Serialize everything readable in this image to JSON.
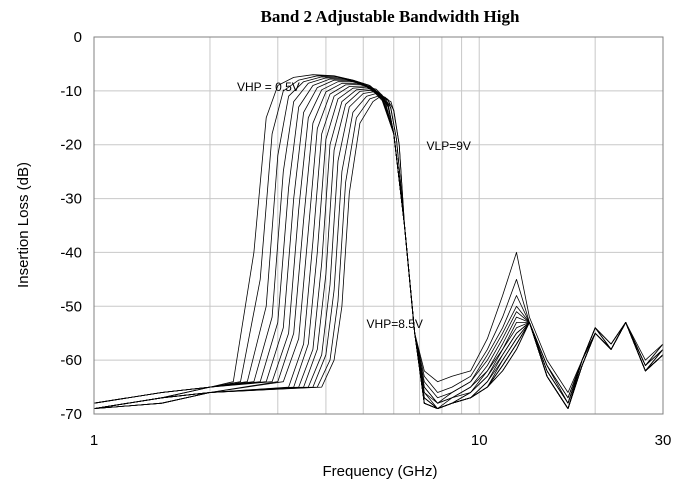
{
  "chart_data": {
    "type": "line",
    "title": "Band 2 Adjustable Bandwidth High",
    "xlabel": "Frequency (GHz)",
    "ylabel": "Insertion Loss (dB)",
    "x_scale": "log",
    "xlim": [
      1,
      30
    ],
    "ylim": [
      -70,
      0
    ],
    "x_ticks": [
      1,
      10,
      30
    ],
    "y_ticks": [
      0,
      -10,
      -20,
      -30,
      -40,
      -50,
      -60,
      -70
    ],
    "grid": true,
    "legend": "none",
    "annotations": [
      {
        "text": "VHP = 0.5V",
        "x": 2.35,
        "y": -10
      },
      {
        "text": "VLP=9V",
        "x": 7.3,
        "y": -21
      },
      {
        "text": "VHP=8.5V",
        "x": 5.1,
        "y": -54
      }
    ],
    "series_note": "family of 17 traces, VHP stepped 0.5V to 8.5V",
    "series": [
      {
        "x": [
          1,
          1.5,
          2,
          2.3,
          2.6,
          2.8,
          3.0,
          3.3,
          3.7,
          4.2,
          4.7,
          5.2,
          5.6,
          6.0,
          6.4,
          6.8,
          7.2,
          7.8,
          8.5,
          9.5,
          10.5,
          11.5,
          12.5,
          13.5,
          15,
          17,
          18.5,
          20,
          22,
          24,
          27,
          30
        ],
        "y": [
          -68,
          -66,
          -65,
          -64,
          -40,
          -15,
          -9,
          -7.5,
          -7,
          -7.2,
          -8,
          -9,
          -11,
          -18,
          -35,
          -55,
          -62,
          -64,
          -63,
          -62,
          -56,
          -48,
          -40,
          -52,
          -60,
          -66,
          -60,
          -54,
          -57,
          -53,
          -60,
          -57
        ]
      },
      {
        "x": [
          1,
          1.5,
          2,
          2.4,
          2.7,
          2.9,
          3.1,
          3.4,
          3.8,
          4.2,
          4.7,
          5.2,
          5.6,
          6.0,
          6.4,
          6.8,
          7.2,
          7.8,
          8.5,
          9.5,
          10.5,
          11.5,
          12.5,
          13.5,
          15,
          17,
          18.5,
          20,
          22,
          24,
          27,
          30
        ],
        "y": [
          -68,
          -66,
          -65,
          -64,
          -45,
          -18,
          -10,
          -8,
          -7.2,
          -7.3,
          -8,
          -9,
          -11,
          -18,
          -35,
          -55,
          -63,
          -66,
          -65,
          -63,
          -58,
          -52,
          -45,
          -53,
          -61,
          -67,
          -60,
          -54,
          -57,
          -53,
          -61,
          -57
        ]
      },
      {
        "x": [
          1,
          1.5,
          2,
          2.5,
          2.8,
          3.0,
          3.2,
          3.5,
          3.9,
          4.3,
          4.7,
          5.2,
          5.6,
          6.0,
          6.4,
          6.8,
          7.2,
          7.8,
          8.5,
          9.5,
          10.5,
          11.5,
          12.5,
          13.5,
          15,
          17,
          18.5,
          20,
          22,
          24,
          27,
          30
        ],
        "y": [
          -68,
          -66,
          -65,
          -64,
          -50,
          -22,
          -11,
          -8.3,
          -7.4,
          -7.5,
          -8.1,
          -9.2,
          -11,
          -18,
          -35,
          -55,
          -64,
          -67,
          -66,
          -64,
          -59,
          -54,
          -48,
          -53,
          -61,
          -67,
          -60,
          -54,
          -57,
          -53,
          -61,
          -57
        ]
      },
      {
        "x": [
          1,
          1.5,
          2,
          2.6,
          2.9,
          3.1,
          3.3,
          3.6,
          4.0,
          4.4,
          4.8,
          5.2,
          5.6,
          6.0,
          6.4,
          6.8,
          7.2,
          7.8,
          8.5,
          9.5,
          10.5,
          11.5,
          12.5,
          13.5,
          15,
          17,
          18.5,
          20,
          22,
          24,
          27,
          30
        ],
        "y": [
          -68,
          -66,
          -65,
          -64,
          -52,
          -25,
          -12,
          -8.6,
          -7.6,
          -7.7,
          -8.3,
          -9.4,
          -11.2,
          -18,
          -35,
          -55,
          -65,
          -68,
          -66,
          -64,
          -60,
          -55,
          -50,
          -53,
          -61,
          -68,
          -60,
          -54,
          -58,
          -53,
          -61,
          -58
        ]
      },
      {
        "x": [
          1,
          1.5,
          2,
          2.7,
          3.0,
          3.2,
          3.4,
          3.7,
          4.1,
          4.5,
          4.9,
          5.3,
          5.6,
          6.0,
          6.4,
          6.8,
          7.2,
          7.8,
          8.5,
          9.5,
          10.5,
          11.5,
          12.5,
          13.5,
          15,
          17,
          18.5,
          20,
          22,
          24,
          27,
          30
        ],
        "y": [
          -68,
          -66,
          -65,
          -64,
          -53,
          -28,
          -13,
          -9,
          -7.8,
          -7.9,
          -8.5,
          -9.6,
          -11.4,
          -18,
          -35,
          -55,
          -65,
          -68,
          -67,
          -65,
          -61,
          -56,
          -51,
          -53,
          -62,
          -68,
          -60,
          -54,
          -58,
          -53,
          -61,
          -58
        ]
      },
      {
        "x": [
          1,
          1.5,
          2,
          2.8,
          3.1,
          3.3,
          3.5,
          3.8,
          4.2,
          4.6,
          5.0,
          5.3,
          5.6,
          6.0,
          6.4,
          6.8,
          7.2,
          7.8,
          8.5,
          9.5,
          10.5,
          11.5,
          12.5,
          13.5,
          15,
          17,
          18.5,
          20,
          22,
          24,
          27,
          30
        ],
        "y": [
          -69,
          -67,
          -65,
          -64,
          -54,
          -30,
          -14,
          -9.4,
          -8,
          -8.1,
          -8.7,
          -9.8,
          -11.6,
          -18,
          -35,
          -55,
          -66,
          -68,
          -67,
          -65,
          -62,
          -57,
          -52,
          -53,
          -62,
          -68,
          -60,
          -54,
          -58,
          -53,
          -62,
          -58
        ]
      },
      {
        "x": [
          1,
          1.5,
          2,
          2.9,
          3.2,
          3.4,
          3.6,
          3.9,
          4.3,
          4.7,
          5.0,
          5.3,
          5.6,
          6.0,
          6.4,
          6.8,
          7.2,
          7.8,
          8.5,
          9.5,
          10.5,
          11.5,
          12.5,
          13.5,
          15,
          17,
          18.5,
          20,
          22,
          24,
          27,
          30
        ],
        "y": [
          -69,
          -67,
          -65,
          -64,
          -55,
          -32,
          -15,
          -9.8,
          -8.3,
          -8.3,
          -8.9,
          -10,
          -11.8,
          -18,
          -35,
          -55,
          -66,
          -69,
          -67,
          -66,
          -62,
          -58,
          -53,
          -53,
          -62,
          -68,
          -60,
          -55,
          -58,
          -53,
          -62,
          -58
        ]
      },
      {
        "x": [
          1,
          1.5,
          2,
          3.0,
          3.3,
          3.5,
          3.7,
          4.0,
          4.4,
          4.8,
          5.1,
          5.4,
          5.7,
          6.0,
          6.4,
          6.8,
          7.2,
          7.8,
          8.5,
          9.5,
          10.5,
          11.5,
          12.5,
          13.5,
          15,
          17,
          18.5,
          20,
          22,
          24,
          27,
          30
        ],
        "y": [
          -69,
          -67,
          -66,
          -64,
          -55,
          -34,
          -16,
          -10.2,
          -8.6,
          -8.6,
          -9.1,
          -10.2,
          -12,
          -18,
          -35,
          -55,
          -67,
          -69,
          -68,
          -66,
          -63,
          -58,
          -54,
          -53,
          -63,
          -69,
          -60,
          -55,
          -58,
          -53,
          -62,
          -58
        ]
      },
      {
        "x": [
          1,
          1.5,
          2,
          3.1,
          3.4,
          3.6,
          3.8,
          4.1,
          4.5,
          4.9,
          5.2,
          5.5,
          5.7,
          6.0,
          6.4,
          6.8,
          7.2,
          7.8,
          8.5,
          9.5,
          10.5,
          11.5,
          12.5,
          13.5,
          15,
          17,
          18.5,
          20,
          22,
          24,
          27,
          30
        ],
        "y": [
          -69,
          -67,
          -66,
          -64,
          -56,
          -36,
          -17,
          -10.6,
          -8.9,
          -8.8,
          -9.3,
          -10.4,
          -12.2,
          -18,
          -35,
          -55,
          -67,
          -69,
          -68,
          -66,
          -63,
          -59,
          -55,
          -53,
          -63,
          -69,
          -60,
          -55,
          -58,
          -53,
          -62,
          -59
        ]
      },
      {
        "x": [
          1,
          1.5,
          2,
          3.2,
          3.5,
          3.7,
          3.9,
          4.2,
          4.6,
          5.0,
          5.3,
          5.5,
          5.8,
          6.0,
          6.4,
          6.8,
          7.2,
          7.8,
          8.5,
          9.5,
          10.5,
          11.5,
          12.5,
          13.5,
          15,
          17,
          18.5,
          20,
          22,
          24,
          27,
          30
        ],
        "y": [
          -69,
          -67,
          -66,
          -65,
          -57,
          -38,
          -18,
          -11,
          -9.2,
          -9.1,
          -9.5,
          -10.6,
          -12.4,
          -18,
          -35,
          -55,
          -67,
          -69,
          -68,
          -67,
          -64,
          -59,
          -55,
          -53,
          -63,
          -69,
          -61,
          -55,
          -58,
          -53,
          -62,
          -59
        ]
      },
      {
        "x": [
          1,
          1.5,
          2,
          3.3,
          3.6,
          3.8,
          4.0,
          4.3,
          4.7,
          5.1,
          5.4,
          5.6,
          5.8,
          6.0,
          6.4,
          6.8,
          7.2,
          7.8,
          8.5,
          9.5,
          10.5,
          11.5,
          12.5,
          13.5,
          15,
          17,
          18.5,
          20,
          22,
          24,
          27,
          30
        ],
        "y": [
          -69,
          -67,
          -66,
          -65,
          -57,
          -40,
          -19,
          -11.5,
          -9.5,
          -9.3,
          -9.7,
          -10.8,
          -12.6,
          -18,
          -35,
          -55,
          -68,
          -69,
          -68,
          -67,
          -64,
          -60,
          -56,
          -53,
          -63,
          -69,
          -61,
          -55,
          -58,
          -53,
          -62,
          -59
        ]
      },
      {
        "x": [
          1,
          1.5,
          2,
          3.4,
          3.7,
          3.9,
          4.1,
          4.4,
          4.8,
          5.2,
          5.4,
          5.6,
          5.8,
          6.0,
          6.4,
          6.8,
          7.2,
          7.8,
          8.5,
          9.5,
          10.5,
          11.5,
          12.5,
          13.5,
          15,
          17,
          18.5,
          20,
          22,
          24,
          27,
          30
        ],
        "y": [
          -69,
          -67,
          -66,
          -65,
          -58,
          -42,
          -20,
          -12,
          -9.8,
          -9.6,
          -10,
          -11,
          -12.8,
          -18,
          -35,
          -55,
          -68,
          -69,
          -68,
          -67,
          -65,
          -60,
          -56,
          -53,
          -63,
          -69,
          -61,
          -55,
          -58,
          -53,
          -62,
          -59
        ]
      },
      {
        "x": [
          1,
          1.5,
          2,
          3.5,
          3.8,
          4.0,
          4.2,
          4.5,
          4.9,
          5.2,
          5.4,
          5.6,
          5.8,
          6.0,
          6.4,
          6.8,
          7.2,
          7.8,
          8.5,
          9.5,
          10.5,
          11.5,
          12.5,
          13.5,
          15,
          17,
          18.5,
          20,
          22,
          24,
          27,
          30
        ],
        "y": [
          -69,
          -67,
          -66,
          -65,
          -58,
          -44,
          -21,
          -12.5,
          -10.1,
          -9.9,
          -10.3,
          -11.2,
          -13,
          -18,
          -35,
          -55,
          -68,
          -69,
          -68,
          -67,
          -65,
          -61,
          -57,
          -53,
          -63,
          -69,
          -61,
          -55,
          -58,
          -53,
          -62,
          -59
        ]
      },
      {
        "x": [
          1,
          1.5,
          2,
          3.6,
          3.9,
          4.1,
          4.3,
          4.6,
          5.0,
          5.3,
          5.5,
          5.7,
          5.9,
          6.1,
          6.4,
          6.8,
          7.2,
          7.8,
          8.5,
          9.5,
          10.5,
          11.5,
          12.5,
          13.5,
          15,
          17,
          18.5,
          20,
          22,
          24,
          27,
          30
        ],
        "y": [
          -69,
          -68,
          -66,
          -65,
          -59,
          -46,
          -23,
          -13,
          -10.5,
          -10.2,
          -10.6,
          -11.4,
          -13.2,
          -19,
          -35,
          -55,
          -68,
          -69,
          -68,
          -67,
          -65,
          -61,
          -57,
          -53,
          -63,
          -69,
          -61,
          -55,
          -58,
          -53,
          -62,
          -59
        ]
      },
      {
        "x": [
          1,
          1.5,
          2,
          3.7,
          4.0,
          4.2,
          4.4,
          4.7,
          5.1,
          5.4,
          5.6,
          5.8,
          5.9,
          6.1,
          6.4,
          6.8,
          7.2,
          7.8,
          8.5,
          9.5,
          10.5,
          11.5,
          12.5,
          13.5,
          15,
          17,
          18.5,
          20,
          22,
          24,
          27,
          30
        ],
        "y": [
          -69,
          -68,
          -66,
          -65,
          -59,
          -47,
          -25,
          -14,
          -11,
          -10.5,
          -10.9,
          -11.6,
          -13.4,
          -19,
          -35,
          -55,
          -68,
          -69,
          -68,
          -67,
          -65,
          -61,
          -57,
          -53,
          -63,
          -69,
          -61,
          -55,
          -58,
          -53,
          -62,
          -59
        ]
      },
      {
        "x": [
          1,
          1.5,
          2,
          3.8,
          4.1,
          4.3,
          4.5,
          4.8,
          5.2,
          5.5,
          5.7,
          5.8,
          6.0,
          6.2,
          6.4,
          6.8,
          7.2,
          7.8,
          8.5,
          9.5,
          10.5,
          11.5,
          12.5,
          13.5,
          15,
          17,
          18.5,
          20,
          22,
          24,
          27,
          30
        ],
        "y": [
          -69,
          -68,
          -66,
          -65,
          -60,
          -49,
          -27,
          -15,
          -11.5,
          -10.9,
          -11.2,
          -11.8,
          -13.6,
          -20,
          -35,
          -55,
          -68,
          -69,
          -68,
          -67,
          -65,
          -62,
          -58,
          -53,
          -63,
          -69,
          -61,
          -55,
          -58,
          -53,
          -62,
          -59
        ]
      },
      {
        "x": [
          1,
          1.5,
          2,
          3.9,
          4.2,
          4.4,
          4.6,
          4.9,
          5.3,
          5.5,
          5.7,
          5.9,
          6.0,
          6.2,
          6.4,
          6.8,
          7.2,
          7.8,
          8.5,
          9.5,
          10.5,
          11.5,
          12.5,
          13.5,
          15,
          17,
          18.5,
          20,
          22,
          24,
          27,
          30
        ],
        "y": [
          -69,
          -68,
          -66,
          -65,
          -60,
          -50,
          -29,
          -16,
          -12,
          -11.2,
          -11.5,
          -12,
          -13.8,
          -20,
          -35,
          -55,
          -68,
          -69,
          -68,
          -67,
          -65,
          -62,
          -58,
          -53,
          -63,
          -69,
          -61,
          -55,
          -58,
          -53,
          -62,
          -59
        ]
      }
    ]
  }
}
